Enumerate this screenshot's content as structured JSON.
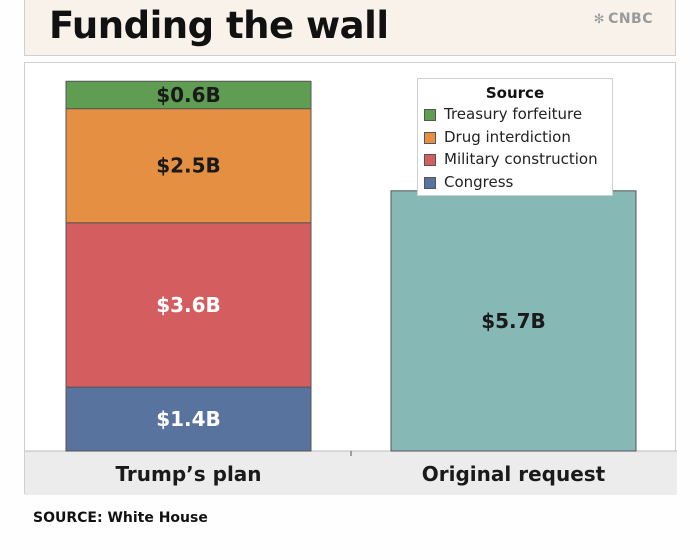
{
  "header": {
    "title": "Funding the wall",
    "brand": "CNBC"
  },
  "chart_data": {
    "type": "bar",
    "stacked": true,
    "categories": [
      "Trump’s plan",
      "Original request"
    ],
    "legend_title": "Source",
    "legend_position": "top-right",
    "series": [
      {
        "name": "Congress",
        "color": "#57739e",
        "values": [
          1.4,
          null
        ],
        "labels": [
          "$1.4B",
          null
        ]
      },
      {
        "name": "Military construction",
        "color": "#d45d5f",
        "values": [
          3.6,
          null
        ],
        "labels": [
          "$3.6B",
          null
        ]
      },
      {
        "name": "Drug interdiction",
        "color": "#e58f42",
        "values": [
          2.5,
          null
        ],
        "labels": [
          "$2.5B",
          null
        ]
      },
      {
        "name": "Treasury forfeiture",
        "color": "#5f9d52",
        "values": [
          0.6,
          null
        ],
        "labels": [
          "$0.6B",
          null
        ]
      },
      {
        "name": "Original request",
        "color": "#86b9b6",
        "values": [
          null,
          5.7
        ],
        "labels": [
          null,
          "$5.7B"
        ]
      }
    ],
    "ylim": [
      0,
      8.5
    ],
    "grid": false
  },
  "footer": {
    "source": "SOURCE: White House"
  }
}
